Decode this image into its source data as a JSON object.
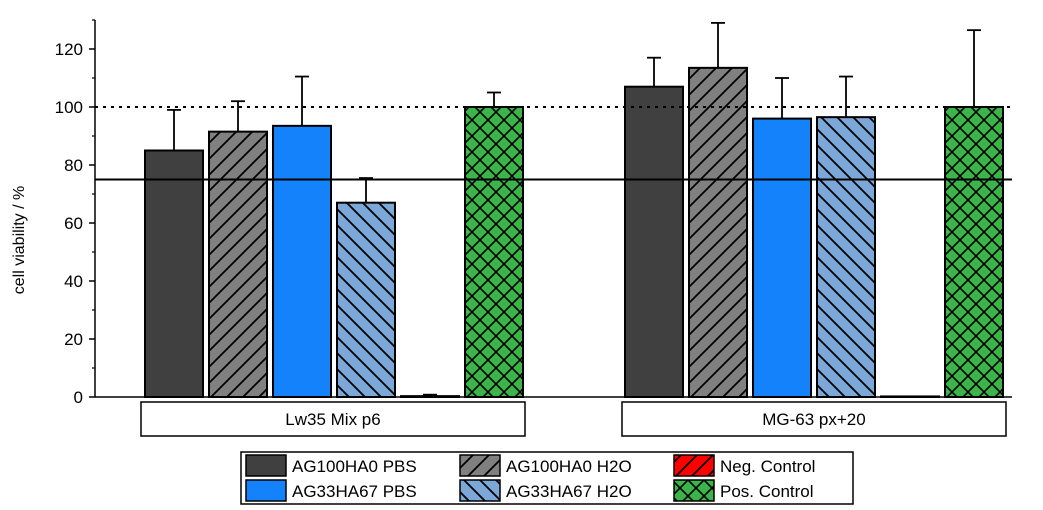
{
  "chart_data": {
    "type": "bar",
    "ylabel": "cell viability / %",
    "ylim": [
      0,
      130
    ],
    "yticks": [
      0,
      20,
      40,
      60,
      80,
      100,
      120
    ],
    "reference_lines": [
      {
        "value": 100,
        "style": "dotted"
      },
      {
        "value": 75,
        "style": "solid"
      }
    ],
    "groups": [
      "Lw35 Mix p6",
      "MG-63 px+20"
    ],
    "series": [
      {
        "name": "AG100HA0 PBS",
        "color": "#404040",
        "pattern": "solid",
        "values": [
          85,
          107
        ],
        "errors": [
          14,
          10
        ]
      },
      {
        "name": "AG100HA0 H2O",
        "color": "#808080",
        "pattern": "forward-hatch",
        "values": [
          91.5,
          113.5
        ],
        "errors": [
          10.5,
          15.5
        ]
      },
      {
        "name": "AG33HA67 PBS",
        "color": "#1482fa",
        "pattern": "solid",
        "values": [
          93.5,
          96
        ],
        "errors": [
          17,
          14
        ]
      },
      {
        "name": "AG33HA67 H2O",
        "color": "#7ba7d9",
        "pattern": "back-hatch",
        "values": [
          67,
          96.5
        ],
        "errors": [
          8.5,
          14
        ]
      },
      {
        "name": "Neg. Control",
        "color": "#ff0000",
        "pattern": "forward-hatch",
        "values": [
          0.3,
          0.2
        ],
        "errors": [
          0.5,
          0
        ]
      },
      {
        "name": "Pos. Control",
        "color": "#3cb44b",
        "pattern": "crosshatch",
        "values": [
          100,
          100
        ],
        "errors": [
          5,
          26.5
        ]
      }
    ],
    "legend": {
      "placement": "bottom-center",
      "columns": 3
    }
  }
}
